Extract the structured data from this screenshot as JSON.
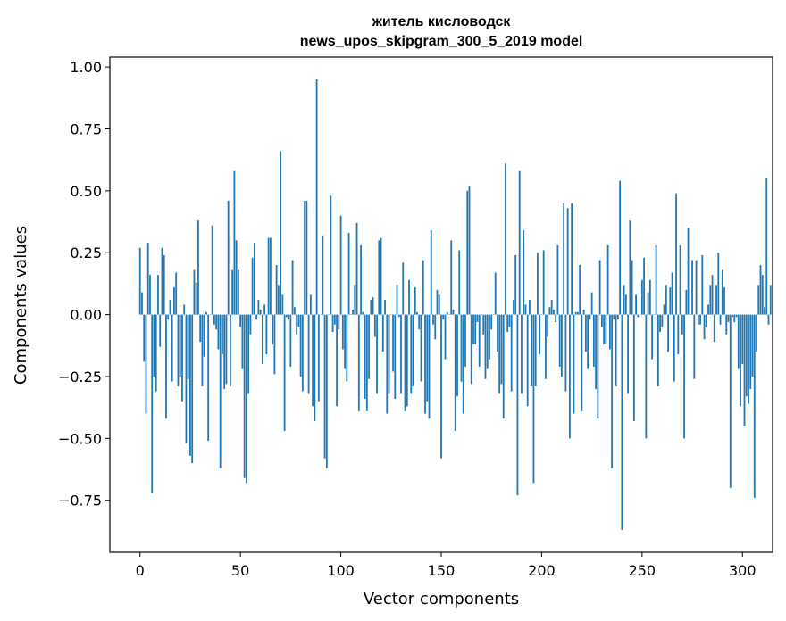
{
  "chart_data": {
    "type": "bar",
    "title_line1": "житель кисловодск",
    "title_line2": "news_upos_skipgram_300_5_2019 model",
    "xlabel": "Vector components",
    "ylabel": "Components values",
    "xlim": [
      -15,
      315
    ],
    "ylim": [
      -0.96,
      1.04
    ],
    "x_ticks": [
      0,
      50,
      100,
      150,
      200,
      250,
      300
    ],
    "x_tick_labels": [
      "0",
      "50",
      "100",
      "150",
      "200",
      "250",
      "300"
    ],
    "y_ticks": [
      -0.75,
      -0.5,
      -0.25,
      0.0,
      0.25,
      0.5,
      0.75,
      1.0
    ],
    "y_tick_labels": [
      "−0.75",
      "−0.50",
      "−0.25",
      "0.00",
      "0.25",
      "0.50",
      "0.75",
      "1.00"
    ],
    "bar_color": "#1f77b4",
    "values": [
      0.27,
      0.09,
      -0.19,
      -0.4,
      0.29,
      0.16,
      -0.72,
      -0.25,
      -0.31,
      0.16,
      -0.13,
      0.27,
      0.24,
      -0.42,
      -0.02,
      0.06,
      -0.27,
      0.11,
      0.17,
      -0.29,
      -0.25,
      -0.35,
      0.04,
      -0.52,
      -0.26,
      -0.57,
      -0.6,
      0.18,
      0.13,
      0.38,
      -0.11,
      -0.29,
      -0.17,
      0.01,
      -0.51,
      0.0,
      0.36,
      -0.04,
      -0.06,
      -0.14,
      -0.62,
      -0.16,
      -0.3,
      -0.28,
      0.46,
      -0.29,
      0.18,
      0.58,
      0.3,
      0.18,
      -0.05,
      -0.22,
      -0.66,
      -0.68,
      -0.32,
      -0.08,
      0.23,
      0.29,
      -0.02,
      0.06,
      0.02,
      -0.2,
      0.04,
      -0.16,
      0.31,
      0.31,
      -0.12,
      -0.24,
      0.2,
      0.12,
      0.66,
      0.08,
      -0.47,
      -0.01,
      -0.02,
      -0.21,
      0.22,
      0.03,
      -0.08,
      -0.05,
      -0.25,
      -0.31,
      0.46,
      0.46,
      -0.32,
      0.08,
      -0.37,
      -0.43,
      0.95,
      -0.35,
      0.0,
      0.32,
      -0.58,
      -0.62,
      0.0,
      0.48,
      -0.07,
      -0.04,
      -0.37,
      -0.06,
      0.4,
      -0.14,
      -0.22,
      -0.27,
      0.33,
      0.0,
      0.02,
      0.12,
      0.37,
      -0.39,
      0.28,
      0.01,
      -0.34,
      -0.39,
      -0.26,
      0.06,
      0.07,
      -0.09,
      -0.32,
      0.3,
      0.31,
      -0.15,
      0.06,
      -0.4,
      -0.32,
      0.0,
      -0.23,
      -0.34,
      0.12,
      -0.01,
      -0.32,
      0.21,
      -0.39,
      -0.37,
      0.14,
      -0.32,
      -0.29,
      0.11,
      0.01,
      -0.06,
      -0.27,
      0.22,
      -0.4,
      -0.35,
      -0.42,
      0.34,
      -0.04,
      -0.1,
      0.1,
      0.08,
      -0.58,
      -0.02,
      -0.18,
      0.01,
      0.0,
      0.3,
      0.02,
      -0.47,
      -0.33,
      0.26,
      -0.27,
      -0.4,
      -0.21,
      0.5,
      0.52,
      -0.28,
      -0.12,
      -0.12,
      -0.03,
      -0.21,
      0.0,
      -0.08,
      -0.26,
      -0.22,
      -0.18,
      -0.06,
      0.0,
      0.17,
      -0.15,
      -0.32,
      -0.28,
      -0.42,
      0.61,
      -0.07,
      -0.05,
      -0.31,
      0.06,
      0.24,
      -0.73,
      0.58,
      -0.32,
      0.34,
      0.04,
      -0.37,
      0.06,
      -0.29,
      -0.68,
      -0.29,
      0.25,
      -0.16,
      0.0,
      0.26,
      -0.26,
      -0.09,
      0.03,
      0.06,
      0.02,
      -0.03,
      0.28,
      -0.21,
      -0.25,
      0.45,
      -0.31,
      0.43,
      -0.5,
      0.45,
      -0.4,
      0.01,
      0.01,
      0.2,
      -0.39,
      0.02,
      -0.15,
      -0.22,
      -0.02,
      0.09,
      -0.21,
      -0.3,
      -0.42,
      0.22,
      -0.05,
      -0.12,
      -0.12,
      0.28,
      -0.14,
      -0.62,
      -0.02,
      -0.29,
      -0.02,
      0.54,
      -0.87,
      0.12,
      0.08,
      -0.32,
      0.38,
      0.22,
      -0.43,
      0.08,
      -0.01,
      0.0,
      0.14,
      0.23,
      -0.5,
      0.09,
      0.14,
      -0.18,
      0.0,
      0.28,
      -0.29,
      -0.07,
      -0.05,
      0.04,
      0.12,
      -0.15,
      0.11,
      0.17,
      -0.27,
      0.49,
      -0.16,
      0.28,
      -0.08,
      -0.5,
      0.1,
      0.35,
      0.0,
      0.22,
      -0.26,
      0.22,
      -0.04,
      -0.04,
      0.24,
      -0.1,
      -0.05,
      0.04,
      0.12,
      0.16,
      -0.11,
      0.12,
      0.25,
      -0.04,
      0.18,
      0.11,
      -0.08,
      -0.03,
      -0.7,
      -0.01,
      -0.03,
      -0.01,
      -0.22,
      -0.37,
      -0.2,
      -0.45,
      -0.33,
      -0.36,
      -0.3,
      -0.25,
      -0.74,
      -0.15,
      0.12,
      0.2,
      0.16,
      0.03,
      0.55,
      -0.04,
      0.12
    ]
  }
}
